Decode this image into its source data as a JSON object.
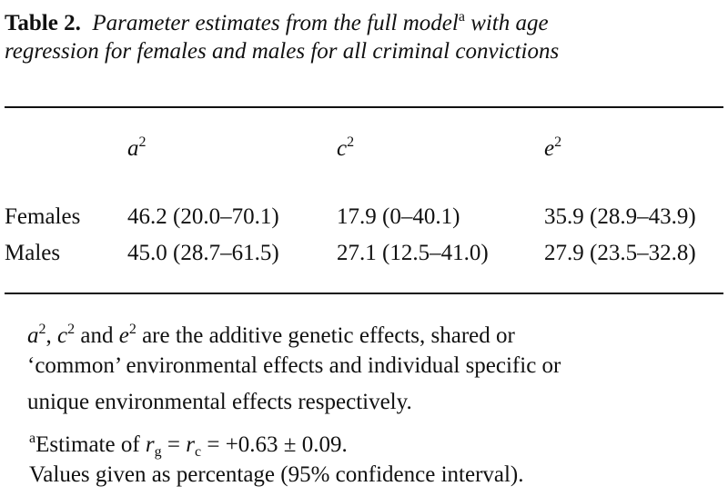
{
  "title": {
    "lines": [
      [
        {
          "text": "Table 2.",
          "style": "b"
        },
        {
          "text": "  Parameter estimates from the full model",
          "style": "i"
        },
        {
          "text": "a",
          "style": "sup"
        },
        {
          "text": " with age",
          "style": "i"
        }
      ],
      [
        {
          "text": "regression for females and males for all criminal convictions",
          "style": "i"
        }
      ]
    ]
  },
  "table": {
    "header": [
      [
        {
          "text": "a",
          "style": "i"
        },
        {
          "text": "2",
          "style": "sup"
        }
      ],
      [
        {
          "text": "c",
          "style": "i"
        },
        {
          "text": "2",
          "style": "sup"
        }
      ],
      [
        {
          "text": "e",
          "style": "i"
        },
        {
          "text": "2",
          "style": "sup"
        }
      ]
    ],
    "rows": [
      [
        "Females",
        "46.2 (20.0–70.1)",
        "17.9 (0–40.1)",
        "35.9 (28.9–43.9)"
      ],
      [
        "Males",
        "45.0 (28.7–61.5)",
        "27.1 (12.5–41.0)",
        "27.9 (23.5–32.8)"
      ]
    ]
  },
  "notes": [
    [
      {
        "text": "a",
        "style": "i"
      },
      {
        "text": "2",
        "style": "sup"
      },
      {
        "text": ", "
      },
      {
        "text": "c",
        "style": "i"
      },
      {
        "text": "2",
        "style": "sup"
      },
      {
        "text": " and "
      },
      {
        "text": "e",
        "style": "i"
      },
      {
        "text": "2",
        "style": "sup"
      },
      {
        "text": " are the additive genetic effects, shared or"
      }
    ],
    [
      {
        "text": "‘common’ environmental effects and individual specific or"
      }
    ],
    [
      {
        "text": "unique environmental effects respectively."
      }
    ],
    [
      {
        "text": "a",
        "style": "sup"
      },
      {
        "text": "Estimate of "
      },
      {
        "text": "r",
        "style": "i"
      },
      {
        "text": "g",
        "style": "sub"
      },
      {
        "text": " = "
      },
      {
        "text": "r",
        "style": "i"
      },
      {
        "text": "c",
        "style": "sub"
      },
      {
        "text": " = +0.63 ± 0.09."
      }
    ],
    [
      {
        "text": "Values given as percentage (95% confidence interval)."
      }
    ]
  ]
}
